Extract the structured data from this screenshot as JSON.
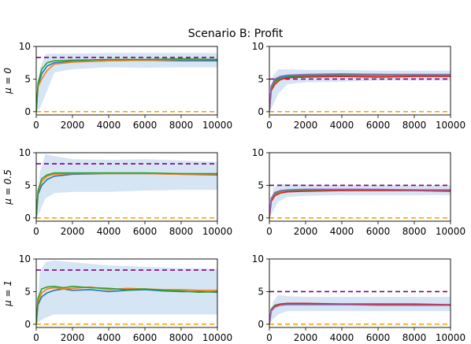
{
  "suptitle": "Scenario B: Profit",
  "colors": {
    "band": "#cfe0f2",
    "ref_upper": "#800080",
    "ref_lower": "#ffa500",
    "blue": "#1f77b4",
    "orange": "#ff7f0e",
    "green": "#2ca02c",
    "red": "#d62728",
    "purple": "#9467bd"
  },
  "chart_data": [
    {
      "type": "line",
      "row": 0,
      "col": 0,
      "ylabel": "μ = 0",
      "xlim": [
        0,
        10000
      ],
      "ylim": [
        -0.5,
        10
      ],
      "xticks": [
        0,
        2000,
        4000,
        6000,
        8000,
        10000
      ],
      "yticks": [
        0,
        5,
        10
      ],
      "reference_lines": [
        {
          "y": 8.3,
          "color": "purple",
          "style": "dashed"
        },
        {
          "y": 0,
          "color": "orange",
          "style": "dashed"
        }
      ],
      "band": {
        "x": [
          0,
          200,
          500,
          1000,
          2000,
          4000,
          6000,
          8000,
          10000
        ],
        "lower": [
          0,
          0.5,
          2.5,
          6.0,
          6.5,
          6.8,
          6.7,
          6.8,
          6.8
        ],
        "upper": [
          0,
          6.5,
          8.8,
          8.9,
          8.9,
          9.0,
          9.0,
          9.0,
          9.0
        ]
      },
      "series": [
        {
          "color": "blue",
          "x": [
            0,
            100,
            300,
            600,
            1000,
            2000,
            4000,
            6000,
            8000,
            10000
          ],
          "y": [
            0,
            4.0,
            5.8,
            7.0,
            7.5,
            7.7,
            7.8,
            7.9,
            7.8,
            7.8
          ]
        },
        {
          "color": "orange",
          "x": [
            0,
            100,
            300,
            600,
            1000,
            2000,
            4000,
            6000,
            8000,
            10000
          ],
          "y": [
            0,
            3.8,
            5.0,
            6.3,
            7.3,
            7.6,
            7.8,
            7.9,
            8.0,
            8.0
          ]
        },
        {
          "color": "green",
          "x": [
            0,
            100,
            300,
            600,
            1000,
            2000,
            4000,
            6000,
            8000,
            10000
          ],
          "y": [
            0,
            4.4,
            6.5,
            7.5,
            7.8,
            7.9,
            8.0,
            8.0,
            8.1,
            8.0
          ]
        }
      ]
    },
    {
      "type": "line",
      "row": 0,
      "col": 1,
      "xlim": [
        0,
        10000
      ],
      "ylim": [
        -0.5,
        10
      ],
      "xticks": [
        0,
        2000,
        4000,
        6000,
        8000,
        10000
      ],
      "yticks": [
        0,
        5,
        10
      ],
      "reference_lines": [
        {
          "y": 5.0,
          "color": "purple",
          "style": "dashed"
        },
        {
          "y": 0,
          "color": "orange",
          "style": "dashed"
        }
      ],
      "band": {
        "x": [
          0,
          200,
          500,
          1000,
          2000,
          4000,
          6000,
          8000,
          10000
        ],
        "lower": [
          0,
          1.0,
          2.8,
          4.2,
          4.5,
          4.6,
          4.8,
          4.8,
          4.8
        ],
        "upper": [
          0,
          5.5,
          6.5,
          6.5,
          6.4,
          6.4,
          6.3,
          6.3,
          6.3
        ]
      },
      "series": [
        {
          "color": "blue",
          "x": [
            0,
            100,
            300,
            600,
            1000,
            2000,
            4000,
            6000,
            8000,
            10000
          ],
          "y": [
            0,
            3.8,
            4.8,
            5.3,
            5.5,
            5.6,
            5.7,
            5.7,
            5.6,
            5.6
          ]
        },
        {
          "color": "orange",
          "x": [
            0,
            100,
            300,
            600,
            1000,
            2000,
            4000,
            6000,
            8000,
            10000
          ],
          "y": [
            0,
            3.4,
            4.4,
            5.0,
            5.2,
            5.4,
            5.5,
            5.5,
            5.5,
            5.5
          ]
        },
        {
          "color": "green",
          "x": [
            0,
            100,
            300,
            600,
            1000,
            2000,
            4000,
            6000,
            8000,
            10000
          ],
          "y": [
            0,
            3.6,
            4.6,
            5.1,
            5.3,
            5.5,
            5.6,
            5.6,
            5.6,
            5.6
          ]
        },
        {
          "color": "red",
          "x": [
            0,
            100,
            300,
            600,
            1000,
            2000,
            4000,
            6000,
            8000,
            10000
          ],
          "y": [
            0,
            3.2,
            4.2,
            4.9,
            5.2,
            5.3,
            5.4,
            5.3,
            5.4,
            5.4
          ]
        },
        {
          "color": "purple",
          "x": [
            0,
            100,
            300,
            600,
            1000,
            2000,
            4000,
            6000,
            8000,
            10000
          ],
          "y": [
            0,
            3.9,
            5.0,
            5.4,
            5.6,
            5.7,
            5.8,
            5.7,
            5.7,
            5.7
          ]
        }
      ]
    },
    {
      "type": "line",
      "row": 1,
      "col": 0,
      "ylabel": "μ = 0.5",
      "xlim": [
        0,
        10000
      ],
      "ylim": [
        -0.5,
        10
      ],
      "xticks": [
        0,
        2000,
        4000,
        6000,
        8000,
        10000
      ],
      "yticks": [
        0,
        5,
        10
      ],
      "reference_lines": [
        {
          "y": 8.3,
          "color": "purple",
          "style": "dashed"
        },
        {
          "y": 0,
          "color": "orange",
          "style": "dashed"
        }
      ],
      "band": {
        "x": [
          0,
          200,
          500,
          1000,
          2000,
          4000,
          6000,
          8000,
          10000
        ],
        "lower": [
          0,
          1.0,
          3.0,
          3.8,
          4.0,
          4.0,
          4.2,
          4.3,
          4.3
        ],
        "upper": [
          0,
          7.0,
          9.8,
          9.5,
          9.0,
          8.9,
          9.0,
          8.8,
          8.6
        ]
      },
      "series": [
        {
          "color": "blue",
          "x": [
            0,
            100,
            300,
            600,
            1000,
            2000,
            4000,
            6000,
            8000,
            10000
          ],
          "y": [
            0,
            3.6,
            5.0,
            5.9,
            6.4,
            6.7,
            6.8,
            6.8,
            6.7,
            6.6
          ]
        },
        {
          "color": "orange",
          "x": [
            0,
            100,
            300,
            600,
            1000,
            2000,
            4000,
            6000,
            8000,
            10000
          ],
          "y": [
            0,
            4.0,
            5.6,
            6.4,
            6.7,
            6.8,
            6.8,
            6.8,
            6.7,
            6.7
          ]
        },
        {
          "color": "green",
          "x": [
            0,
            100,
            300,
            600,
            1000,
            2000,
            4000,
            6000,
            8000,
            10000
          ],
          "y": [
            0,
            4.2,
            6.0,
            6.6,
            6.9,
            6.9,
            6.9,
            6.9,
            6.8,
            6.8
          ]
        }
      ]
    },
    {
      "type": "line",
      "row": 1,
      "col": 1,
      "xlim": [
        0,
        10000
      ],
      "ylim": [
        -0.5,
        10
      ],
      "xticks": [
        0,
        2000,
        4000,
        6000,
        8000,
        10000
      ],
      "yticks": [
        0,
        5,
        10
      ],
      "reference_lines": [
        {
          "y": 5.0,
          "color": "purple",
          "style": "dashed"
        },
        {
          "y": 0,
          "color": "orange",
          "style": "dashed"
        }
      ],
      "band": {
        "x": [
          0,
          200,
          500,
          1000,
          2000,
          4000,
          6000,
          8000,
          10000
        ],
        "lower": [
          0,
          1.0,
          2.5,
          3.2,
          3.4,
          3.5,
          3.5,
          3.5,
          3.5
        ],
        "upper": [
          0,
          4.5,
          5.2,
          5.2,
          5.1,
          5.0,
          5.0,
          5.0,
          5.0
        ]
      },
      "series": [
        {
          "color": "blue",
          "x": [
            0,
            100,
            300,
            600,
            1000,
            2000,
            4000,
            6000,
            8000,
            10000
          ],
          "y": [
            0,
            2.8,
            3.7,
            4.0,
            4.2,
            4.3,
            4.3,
            4.3,
            4.3,
            4.2
          ]
        },
        {
          "color": "orange",
          "x": [
            0,
            100,
            300,
            600,
            1000,
            2000,
            4000,
            6000,
            8000,
            10000
          ],
          "y": [
            0,
            2.6,
            3.5,
            3.9,
            4.1,
            4.2,
            4.3,
            4.3,
            4.3,
            4.3
          ]
        },
        {
          "color": "green",
          "x": [
            0,
            100,
            300,
            600,
            1000,
            2000,
            4000,
            6000,
            8000,
            10000
          ],
          "y": [
            0,
            2.9,
            3.8,
            4.1,
            4.2,
            4.3,
            4.3,
            4.3,
            4.2,
            4.2
          ]
        },
        {
          "color": "red",
          "x": [
            0,
            100,
            300,
            600,
            1000,
            2000,
            4000,
            6000,
            8000,
            10000
          ],
          "y": [
            0,
            2.5,
            3.4,
            3.8,
            4.0,
            4.1,
            4.2,
            4.2,
            4.2,
            4.1
          ]
        },
        {
          "color": "purple",
          "x": [
            0,
            100,
            300,
            600,
            1000,
            2000,
            4000,
            6000,
            8000,
            10000
          ],
          "y": [
            0,
            3.0,
            3.9,
            4.2,
            4.3,
            4.4,
            4.4,
            4.4,
            4.3,
            4.3
          ]
        }
      ]
    },
    {
      "type": "line",
      "row": 2,
      "col": 0,
      "ylabel": "μ = 1",
      "xlim": [
        0,
        10000
      ],
      "ylim": [
        -0.5,
        10
      ],
      "xticks": [
        0,
        2000,
        4000,
        6000,
        8000,
        10000
      ],
      "yticks": [
        0,
        5,
        10
      ],
      "reference_lines": [
        {
          "y": 8.3,
          "color": "purple",
          "style": "dashed"
        },
        {
          "y": 0,
          "color": "orange",
          "style": "dashed"
        }
      ],
      "band": {
        "x": [
          0,
          200,
          500,
          1000,
          2000,
          4000,
          6000,
          8000,
          10000
        ],
        "lower": [
          0,
          0.5,
          1.0,
          1.5,
          1.5,
          1.5,
          1.5,
          1.5,
          1.5
        ],
        "upper": [
          0,
          8.0,
          9.5,
          9.8,
          9.5,
          9.0,
          8.8,
          8.6,
          8.5
        ]
      },
      "series": [
        {
          "color": "blue",
          "x": [
            0,
            100,
            300,
            600,
            1000,
            1500,
            2000,
            3000,
            4000,
            5000,
            6000,
            7000,
            8000,
            9000,
            10000
          ],
          "y": [
            0,
            3.0,
            4.2,
            4.8,
            5.2,
            5.4,
            5.2,
            5.3,
            5.0,
            5.2,
            5.3,
            5.1,
            5.0,
            5.0,
            4.9
          ]
        },
        {
          "color": "orange",
          "x": [
            0,
            100,
            300,
            600,
            1000,
            1500,
            2000,
            3000,
            4000,
            5000,
            6000,
            7000,
            8000,
            9000,
            10000
          ],
          "y": [
            0,
            3.4,
            4.8,
            5.4,
            5.6,
            5.4,
            5.5,
            5.7,
            5.3,
            5.5,
            5.4,
            5.3,
            5.3,
            5.2,
            5.2
          ]
        },
        {
          "color": "green",
          "x": [
            0,
            100,
            300,
            600,
            1000,
            1500,
            2000,
            3000,
            4000,
            5000,
            6000,
            7000,
            8000,
            9000,
            10000
          ],
          "y": [
            0,
            4.0,
            5.4,
            5.7,
            5.8,
            5.6,
            5.8,
            5.6,
            5.5,
            5.3,
            5.4,
            5.2,
            5.1,
            4.9,
            5.0
          ]
        }
      ]
    },
    {
      "type": "line",
      "row": 2,
      "col": 1,
      "xlim": [
        0,
        10000
      ],
      "ylim": [
        -0.5,
        10
      ],
      "xticks": [
        0,
        2000,
        4000,
        6000,
        8000,
        10000
      ],
      "yticks": [
        0,
        5,
        10
      ],
      "reference_lines": [
        {
          "y": 5.0,
          "color": "purple",
          "style": "dashed"
        },
        {
          "y": 0,
          "color": "orange",
          "style": "dashed"
        }
      ],
      "band": {
        "x": [
          0,
          200,
          500,
          1000,
          2000,
          4000,
          6000,
          8000,
          10000
        ],
        "lower": [
          0,
          0.8,
          1.5,
          2.0,
          2.0,
          2.0,
          2.0,
          2.0,
          2.0
        ],
        "upper": [
          0,
          3.5,
          4.5,
          4.3,
          4.2,
          4.2,
          4.2,
          4.2,
          4.2
        ]
      },
      "series": [
        {
          "color": "blue",
          "x": [
            0,
            100,
            300,
            600,
            1000,
            2000,
            4000,
            6000,
            8000,
            10000
          ],
          "y": [
            0,
            2.2,
            2.8,
            3.0,
            3.0,
            3.0,
            3.0,
            3.0,
            2.9,
            2.9
          ]
        },
        {
          "color": "orange",
          "x": [
            0,
            100,
            300,
            600,
            1000,
            2000,
            4000,
            6000,
            8000,
            10000
          ],
          "y": [
            0,
            2.0,
            2.7,
            3.0,
            3.1,
            3.1,
            3.1,
            3.1,
            3.0,
            3.0
          ]
        },
        {
          "color": "green",
          "x": [
            0,
            100,
            300,
            600,
            1000,
            2000,
            4000,
            6000,
            8000,
            10000
          ],
          "y": [
            0,
            2.3,
            2.9,
            3.1,
            3.1,
            3.0,
            3.0,
            3.0,
            3.0,
            2.9
          ]
        },
        {
          "color": "red",
          "x": [
            0,
            100,
            300,
            600,
            1000,
            2000,
            4000,
            6000,
            8000,
            10000
          ],
          "y": [
            0,
            2.1,
            2.8,
            3.1,
            3.2,
            3.2,
            3.1,
            3.1,
            3.1,
            3.0
          ]
        },
        {
          "color": "purple",
          "x": [
            0,
            100,
            300,
            600,
            1000,
            2000,
            4000,
            6000,
            8000,
            10000
          ],
          "y": [
            0,
            2.0,
            2.6,
            2.9,
            3.0,
            3.0,
            3.0,
            2.9,
            2.9,
            2.9
          ]
        }
      ]
    }
  ]
}
